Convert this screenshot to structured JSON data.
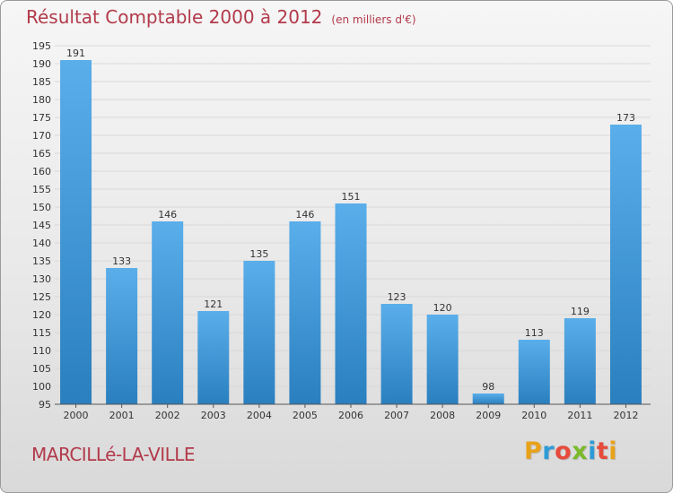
{
  "header": {
    "title": "Résultat Comptable 2000 à 2012",
    "unit": "(en milliers d'€)"
  },
  "footer": {
    "commune": "MARCILLé-LA-VILLE",
    "brand": "Proxiti",
    "brand_colors": [
      "#e8a21a",
      "#2f9bd6",
      "#e64b3b",
      "#7ab929",
      "#2f9bd6",
      "#e64b3b",
      "#e8a21a"
    ]
  },
  "colors": {
    "bar_top": "#5aaeea",
    "bar_bottom": "#2a7fbf",
    "grid": "#d8d8d8",
    "axis_text": "#333333"
  },
  "chart_data": {
    "type": "bar",
    "title": "Résultat Comptable 2000 à 2012",
    "xlabel": "",
    "ylabel": "",
    "categories": [
      "2000",
      "2001",
      "2002",
      "2003",
      "2004",
      "2005",
      "2006",
      "2007",
      "2008",
      "2009",
      "2010",
      "2011",
      "2012"
    ],
    "values": [
      191,
      133,
      146,
      121,
      135,
      146,
      151,
      123,
      120,
      98,
      113,
      119,
      173
    ],
    "ylim": [
      95,
      195
    ],
    "yticks": [
      95,
      100,
      105,
      110,
      115,
      120,
      125,
      130,
      135,
      140,
      145,
      150,
      155,
      160,
      165,
      170,
      175,
      180,
      185,
      190,
      195
    ],
    "grid": true,
    "data_labels": true
  }
}
